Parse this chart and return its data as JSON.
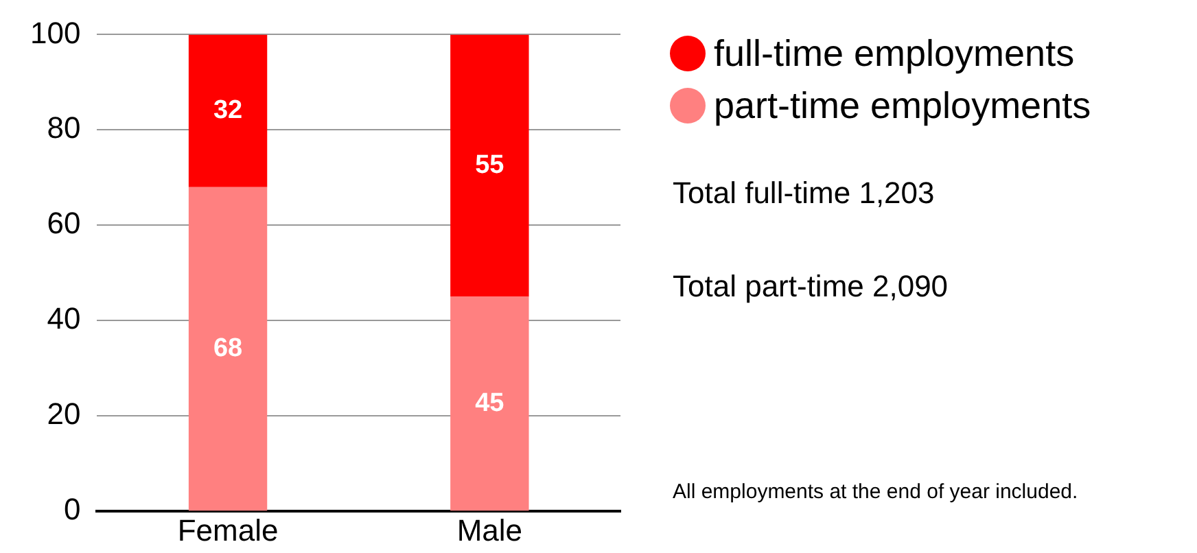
{
  "chart_data": {
    "type": "bar",
    "stacked": true,
    "categories": [
      "Female",
      "Male"
    ],
    "series": [
      {
        "name": "part-time employments",
        "color": "#ff8080",
        "values": [
          68,
          45
        ]
      },
      {
        "name": "full-time employments",
        "color": "#ff0000",
        "values": [
          32,
          55
        ]
      }
    ],
    "ylim": [
      0,
      100
    ],
    "yticks": [
      0,
      20,
      40,
      60,
      80,
      100
    ],
    "grid": "y",
    "legend": "top right",
    "data_labels": true,
    "annotations": [
      "Total full-time 1,203",
      "Total part-time 2,090",
      "All employments at the end of year included."
    ]
  }
}
